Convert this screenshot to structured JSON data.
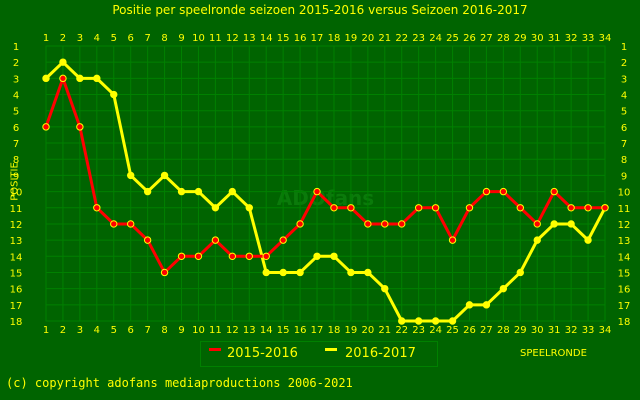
{
  "title": "Positie per speelronde seizoen 2015-2016 versus Seizoen 2016-2017",
  "copyright": "(c) copyright adofans mediaproductions 2006-2021",
  "watermark": "ADOfans",
  "colors": {
    "background": "#006400",
    "plot_border": "#008000",
    "grid": "#008000",
    "text": "#FFFF00",
    "series_2015_2016": "#FF0000",
    "series_2016_2017": "#FFFF00",
    "marker_edge": "#FFFF00"
  },
  "chart_data": {
    "type": "line",
    "title": "Positie per speelronde seizoen 2015-2016 versus Seizoen 2016-2017",
    "xlabel": "SPEELRONDE",
    "ylabel": "POSITIE",
    "x": [
      1,
      2,
      3,
      4,
      5,
      6,
      7,
      8,
      9,
      10,
      11,
      12,
      13,
      14,
      15,
      16,
      17,
      18,
      19,
      20,
      21,
      22,
      23,
      24,
      25,
      26,
      27,
      28,
      29,
      30,
      31,
      32,
      33,
      34
    ],
    "xlim": [
      1,
      34
    ],
    "ylim": [
      18,
      1
    ],
    "y_inverted": true,
    "y_ticks": [
      1,
      2,
      3,
      4,
      5,
      6,
      7,
      8,
      9,
      10,
      11,
      12,
      13,
      14,
      15,
      16,
      17,
      18
    ],
    "grid": true,
    "legend_position": "bottom-center",
    "series": [
      {
        "name": "2015-2016",
        "color": "#FF0000",
        "values": [
          6,
          3,
          6,
          11,
          12,
          12,
          13,
          15,
          14,
          14,
          13,
          14,
          14,
          14,
          13,
          12,
          10,
          11,
          11,
          12,
          12,
          12,
          11,
          11,
          13,
          11,
          10,
          10,
          11,
          12,
          10,
          11,
          11,
          11
        ]
      },
      {
        "name": "2016-2017",
        "color": "#FFFF00",
        "values": [
          3,
          2,
          3,
          3,
          4,
          9,
          10,
          9,
          10,
          10,
          11,
          10,
          11,
          15,
          15,
          15,
          14,
          14,
          15,
          15,
          16,
          18,
          18,
          18,
          18,
          17,
          17,
          16,
          15,
          13,
          12,
          12,
          13,
          11
        ]
      }
    ]
  }
}
